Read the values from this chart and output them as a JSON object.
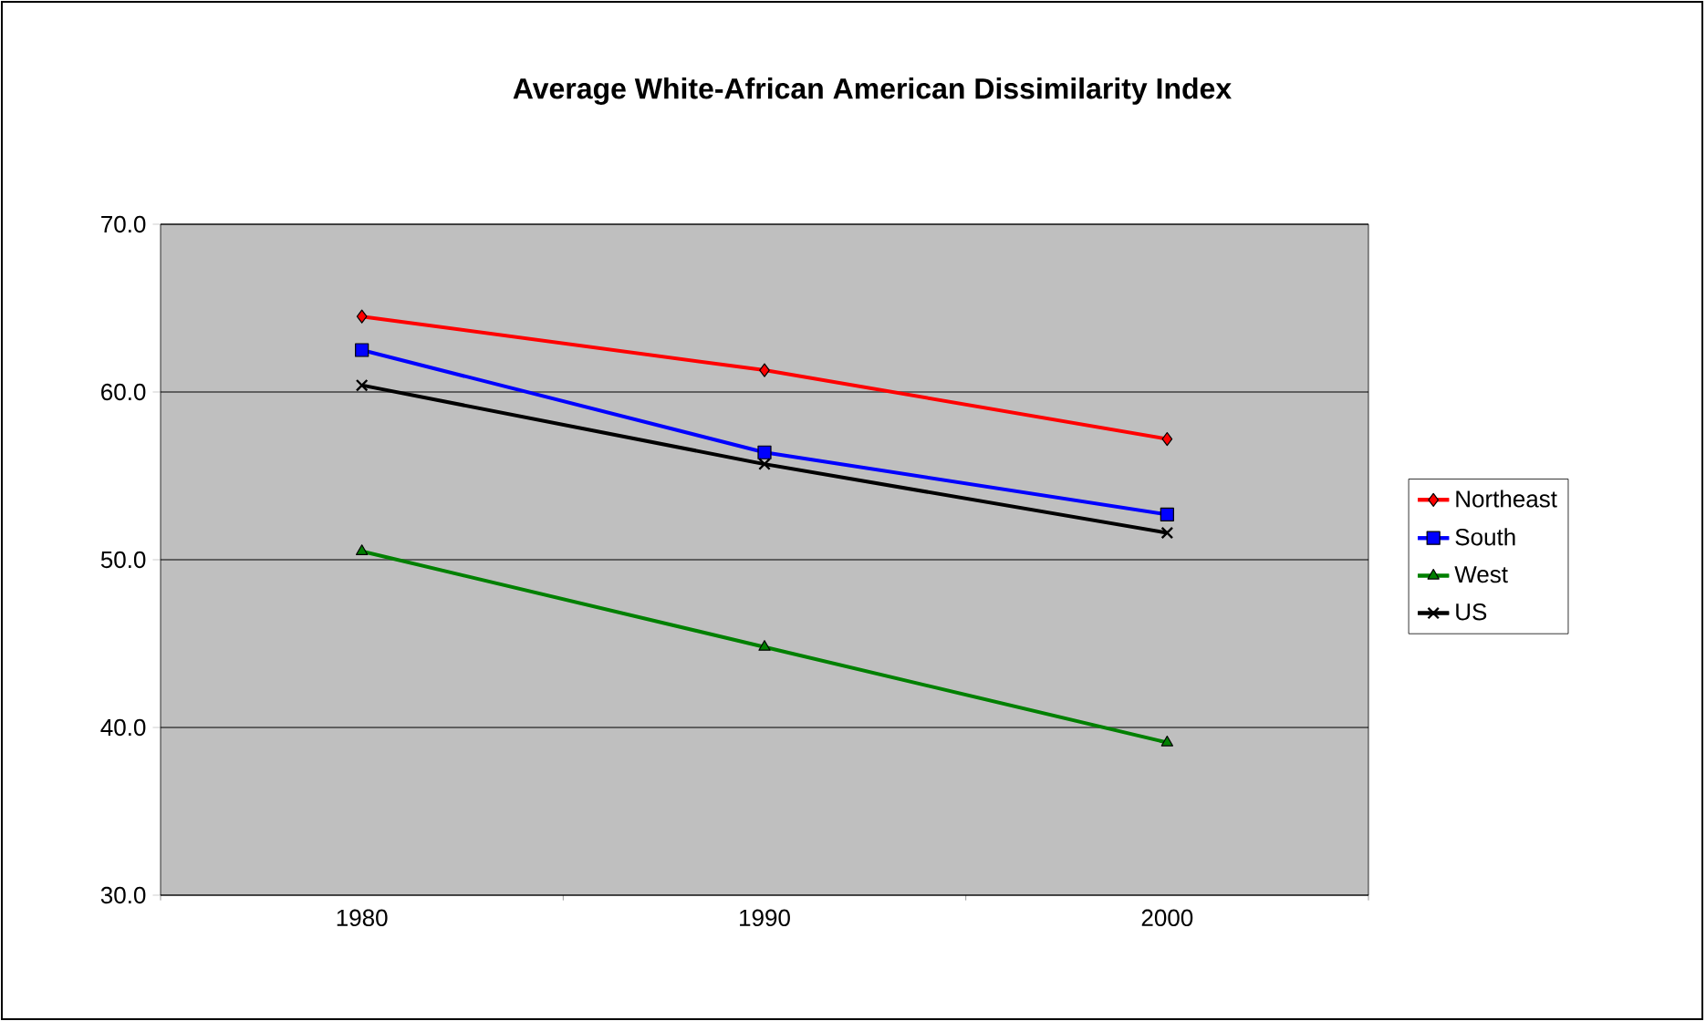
{
  "chart_data": {
    "type": "line",
    "title": "Average White-African American Dissimilarity Index",
    "categories": [
      "1980",
      "1990",
      "2000"
    ],
    "series": [
      {
        "name": "Northeast",
        "color": "#ff0000",
        "marker": "diamond",
        "values": [
          64.5,
          61.3,
          57.2
        ]
      },
      {
        "name": "South",
        "color": "#0000ff",
        "marker": "square",
        "values": [
          62.5,
          56.4,
          52.7
        ]
      },
      {
        "name": "West",
        "color": "#008000",
        "marker": "triangle",
        "values": [
          50.5,
          44.8,
          39.1
        ]
      },
      {
        "name": "US",
        "color": "#000000",
        "marker": "cross",
        "values": [
          60.4,
          55.7,
          51.6
        ]
      }
    ],
    "ylim": [
      30,
      70
    ],
    "yticks": [
      {
        "value": 30,
        "label": "30.0"
      },
      {
        "value": 40,
        "label": "40.0"
      },
      {
        "value": 50,
        "label": "50.0"
      },
      {
        "value": 60,
        "label": "60.0"
      },
      {
        "value": 70,
        "label": "70.0"
      }
    ],
    "grid": "y",
    "legend": "right"
  }
}
